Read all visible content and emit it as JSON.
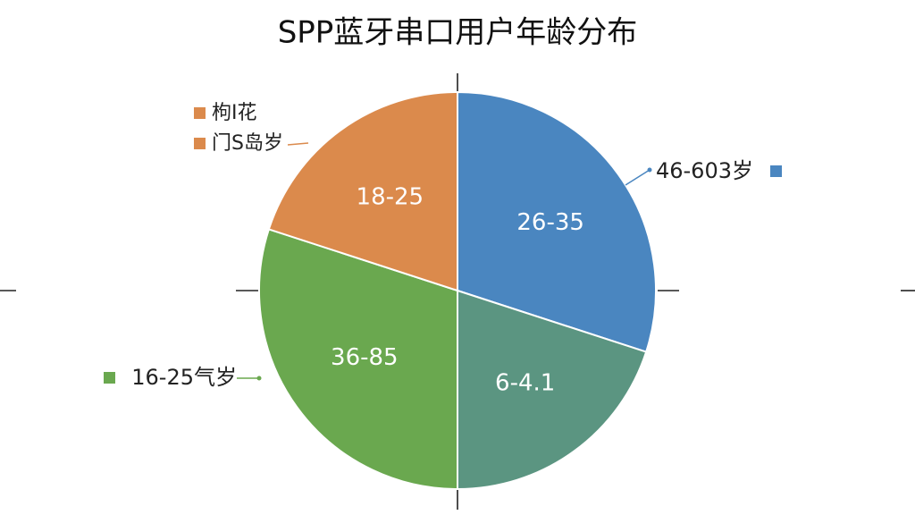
{
  "chart_data": {
    "type": "pie",
    "title": "SPP蓝牙串口用户年龄分布",
    "categories": [
      "26-35",
      "6-4.1",
      "36-85",
      "18-25"
    ],
    "values": [
      30,
      20,
      30,
      20
    ],
    "colors": [
      "#4a86c0",
      "#5b9581",
      "#6aa84f",
      "#db8a4c"
    ],
    "legend": [
      {
        "label": "枸I花",
        "color": "#db8a4c"
      },
      {
        "label": "门S岛岁",
        "color": "#db8a4c"
      }
    ],
    "callouts": [
      {
        "label": "46-603岁",
        "color": "#4a86c0"
      },
      {
        "label": "16-25气岁",
        "color": "#6aa84f"
      }
    ]
  }
}
